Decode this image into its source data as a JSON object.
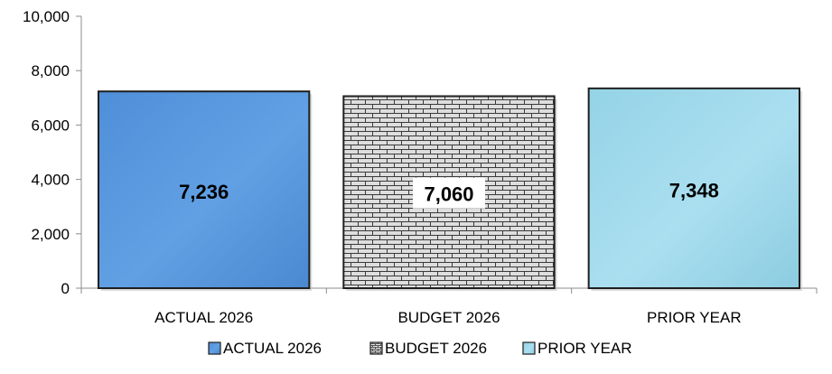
{
  "chart_data": {
    "type": "bar",
    "title": "",
    "xlabel": "",
    "ylabel": "",
    "ylim": [
      0,
      10000
    ],
    "yticks": [
      0,
      2000,
      4000,
      6000,
      8000,
      10000
    ],
    "ytick_labels": [
      "0",
      "2,000",
      "4,000",
      "6,000",
      "8,000",
      "10,000"
    ],
    "categories": [
      "ACTUAL 2026",
      "BUDGET 2026",
      "PRIOR YEAR"
    ],
    "values": [
      7236,
      7060,
      7348
    ],
    "value_labels": [
      "7,236",
      "7,060",
      "7,348"
    ],
    "colors": [
      "#5b9bd5",
      "#d9d9d9",
      "#9fd8e8"
    ],
    "patterns": [
      "solid",
      "brick",
      "solid"
    ],
    "grid": false,
    "legend": {
      "position": "bottom",
      "entries": [
        "ACTUAL 2026",
        "BUDGET 2026",
        "PRIOR YEAR"
      ]
    }
  }
}
